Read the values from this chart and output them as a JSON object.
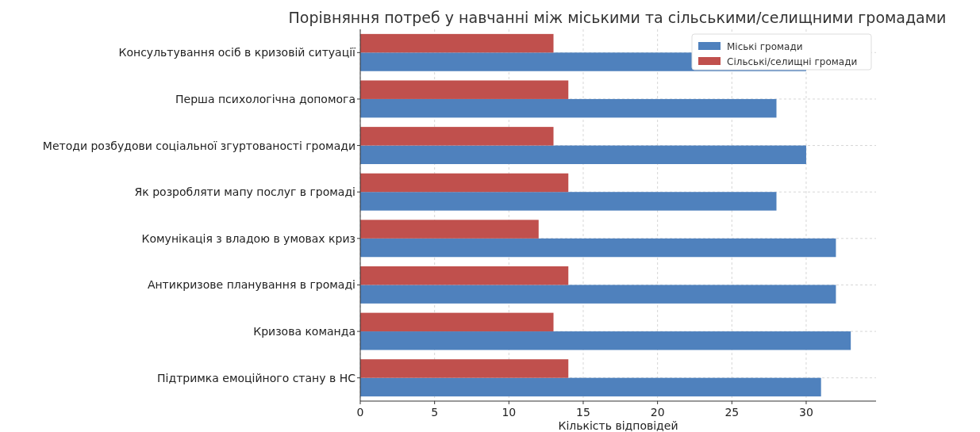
{
  "chart_data": {
    "type": "bar",
    "orientation": "horizontal",
    "title": "Порівняння потреб у навчанні між міськими та сільськими/селищними громадами",
    "xlabel": "Кількість відповідей",
    "categories": [
      "Консультування осіб в кризовій ситуації",
      "Перша психологічна допомога",
      "Методи розбудови соціальної згуртованості громади",
      "Як розробляти мапу послуг в громаді",
      "Комунікація з владою в умовах криз",
      "Антикризове планування в громаді",
      "Кризова команда",
      "Підтримка емоційного стану в НС"
    ],
    "series": [
      {
        "name": "Міські громади",
        "color": "#4f81bd",
        "values": [
          30,
          28,
          30,
          28,
          32,
          32,
          33,
          31
        ]
      },
      {
        "name": "Сільські/селищні громади",
        "color": "#c0504d",
        "values": [
          13,
          14,
          13,
          14,
          12,
          14,
          13,
          14
        ]
      }
    ],
    "xlim": [
      0,
      34.7
    ],
    "xticks": [
      0,
      5,
      10,
      15,
      20,
      25,
      30
    ],
    "grid": true,
    "legend": "top right"
  }
}
